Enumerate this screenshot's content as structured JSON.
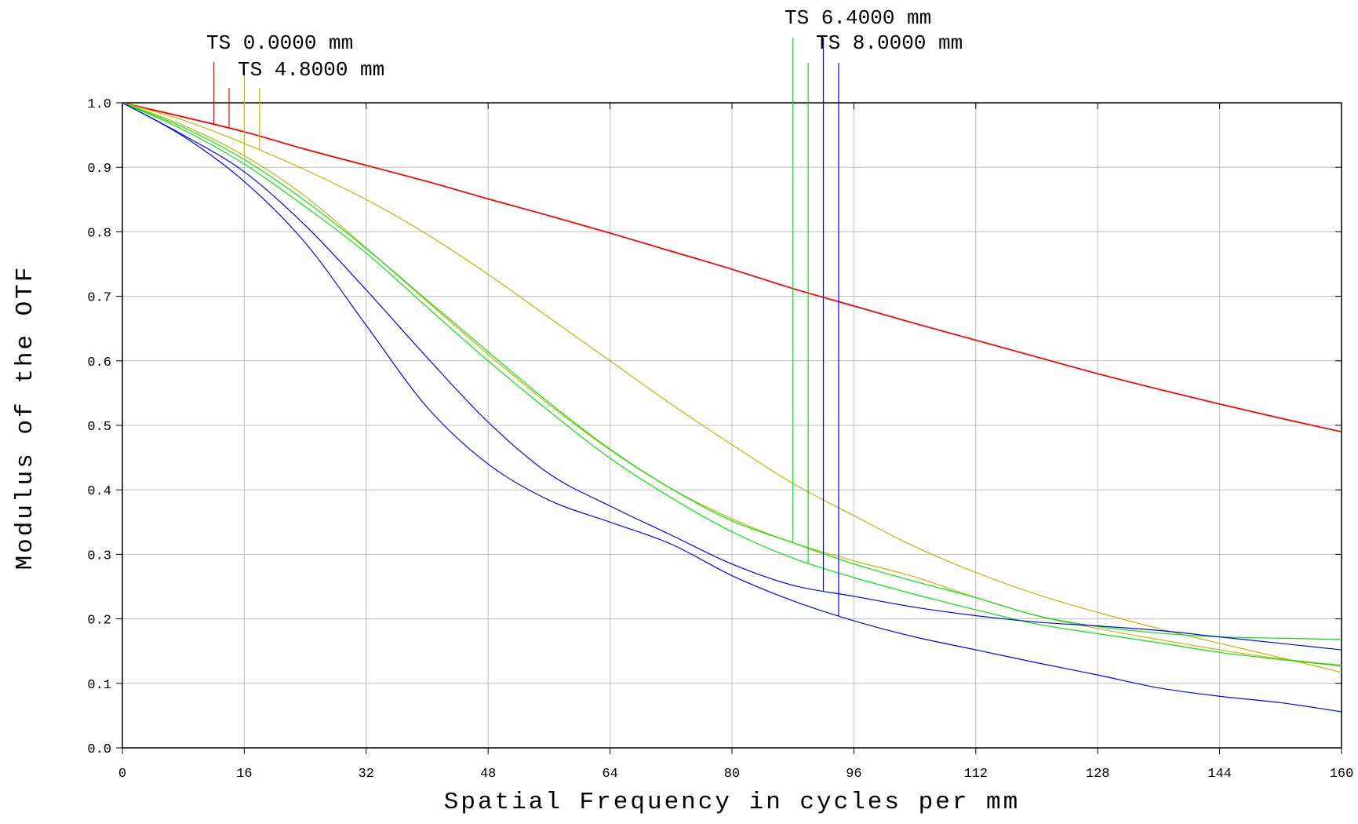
{
  "chart_data": {
    "type": "line",
    "xlabel": "Spatial Frequency in cycles per mm",
    "ylabel": "Modulus of the OTF",
    "xlim": [
      0,
      160
    ],
    "ylim": [
      0,
      1.0
    ],
    "x_ticks": [
      "0",
      "16",
      "32",
      "48",
      "64",
      "80",
      "96",
      "112",
      "128",
      "144",
      "160"
    ],
    "y_ticks": [
      "0.0",
      "0.1",
      "0.2",
      "0.3",
      "0.4",
      "0.5",
      "0.6",
      "0.7",
      "0.8",
      "0.9",
      "1.0"
    ],
    "grid": true,
    "x": [
      0,
      8,
      16,
      24,
      32,
      40,
      48,
      56,
      64,
      72,
      80,
      88,
      96,
      104,
      112,
      120,
      128,
      136,
      144,
      152,
      160
    ],
    "field_labels": [
      {
        "text": "TS 0.0000 mm",
        "color": "#ff0000"
      },
      {
        "text": "TS 4.8000 mm",
        "color": "#c8b400"
      },
      {
        "text": "TS 6.4000 mm",
        "color": "#00e600"
      },
      {
        "text": "TS 8.0000 mm",
        "color": "#0000ff"
      }
    ],
    "series": [
      {
        "field": "TS 0.0000 mm",
        "kind": "T",
        "color": "#ff0000",
        "marker_x": 12,
        "values": [
          1.0,
          0.978,
          0.955,
          0.928,
          0.903,
          0.878,
          0.851,
          0.825,
          0.798,
          0.77,
          0.742,
          0.712,
          0.685,
          0.658,
          0.632,
          0.606,
          0.58,
          0.556,
          0.533,
          0.511,
          0.49
        ]
      },
      {
        "field": "TS 0.0000 mm",
        "kind": "S",
        "color": "#ff0000",
        "marker_x": 14,
        "values": [
          1.0,
          0.978,
          0.955,
          0.928,
          0.903,
          0.878,
          0.851,
          0.825,
          0.798,
          0.77,
          0.742,
          0.712,
          0.685,
          0.658,
          0.632,
          0.606,
          0.58,
          0.556,
          0.533,
          0.511,
          0.49
        ]
      },
      {
        "field": "TS 4.8000 mm",
        "kind": "T",
        "color": "#c8b400",
        "marker_x": 16,
        "values": [
          1.0,
          0.965,
          0.918,
          0.855,
          0.775,
          0.692,
          0.61,
          0.532,
          0.462,
          0.402,
          0.355,
          0.318,
          0.29,
          0.265,
          0.233,
          0.205,
          0.185,
          0.168,
          0.152,
          0.138,
          0.128
        ]
      },
      {
        "field": "TS 4.8000 mm",
        "kind": "S",
        "color": "#c8b400",
        "marker_x": 18,
        "values": [
          1.0,
          0.973,
          0.937,
          0.896,
          0.85,
          0.796,
          0.734,
          0.667,
          0.6,
          0.533,
          0.47,
          0.41,
          0.36,
          0.312,
          0.272,
          0.238,
          0.21,
          0.185,
          0.162,
          0.14,
          0.117
        ]
      },
      {
        "field": "TS 6.4000 mm",
        "kind": "T",
        "color": "#00e600",
        "marker_x": 88,
        "values": [
          1.0,
          0.962,
          0.912,
          0.848,
          0.774,
          0.694,
          0.614,
          0.535,
          0.463,
          0.402,
          0.352,
          0.318,
          0.285,
          0.258,
          0.233,
          0.205,
          0.188,
          0.178,
          0.172,
          0.17,
          0.168
        ]
      },
      {
        "field": "TS 6.4000 mm",
        "kind": "S",
        "color": "#00e600",
        "marker_x": 90,
        "values": [
          1.0,
          0.958,
          0.905,
          0.839,
          0.767,
          0.683,
          0.6,
          0.522,
          0.449,
          0.388,
          0.335,
          0.294,
          0.264,
          0.238,
          0.214,
          0.192,
          0.177,
          0.163,
          0.148,
          0.137,
          0.127
        ]
      },
      {
        "field": "TS 8.0000 mm",
        "kind": "T",
        "color": "#0000ff",
        "marker_x": 92,
        "values": [
          1.0,
          0.95,
          0.893,
          0.81,
          0.71,
          0.605,
          0.505,
          0.425,
          0.375,
          0.33,
          0.285,
          0.252,
          0.235,
          0.218,
          0.205,
          0.195,
          0.189,
          0.182,
          0.172,
          0.162,
          0.152
        ]
      },
      {
        "field": "TS 8.0000 mm",
        "kind": "S",
        "color": "#0000ff",
        "marker_x": 94,
        "values": [
          1.0,
          0.948,
          0.878,
          0.783,
          0.655,
          0.528,
          0.44,
          0.384,
          0.35,
          0.316,
          0.267,
          0.228,
          0.197,
          0.172,
          0.152,
          0.132,
          0.113,
          0.093,
          0.08,
          0.07,
          0.056
        ]
      }
    ]
  }
}
